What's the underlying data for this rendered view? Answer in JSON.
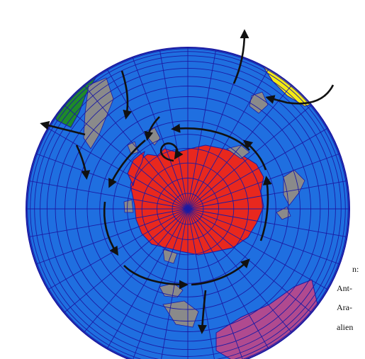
{
  "figure": {
    "projection": "orthographic, south polar view",
    "visible_labels": [
      "n:",
      "Ant-",
      "Ara-",
      "alien"
    ]
  },
  "colors": {
    "ocean": "#1f6fe0",
    "grid": "#1b1ba3",
    "antarctica": "#e8281e",
    "south_america": "#1e8a2a",
    "africa": "#f4ea12",
    "australia": "#b04a8f",
    "minor_land": "#8a8a8a",
    "currents": "#111111"
  },
  "icons": [
    "current-arrow",
    "globe-outline"
  ]
}
